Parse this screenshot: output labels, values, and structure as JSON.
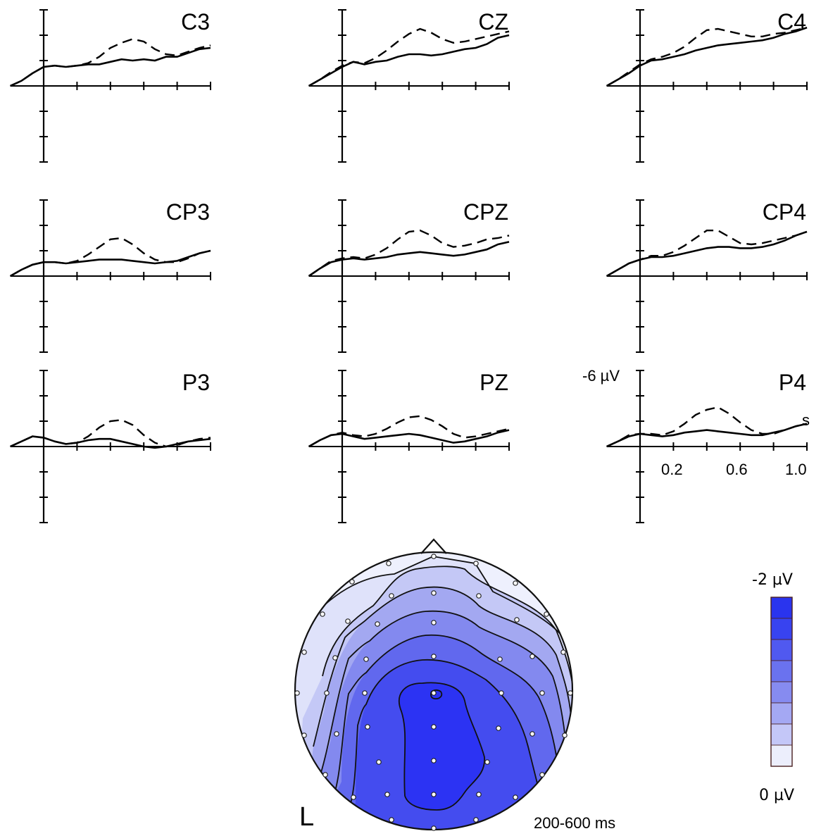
{
  "chart_data": [
    {
      "type": "line",
      "panels": [
        {
          "channel": "C3",
          "solid": [
            0,
            0.4,
            1.0,
            1.5,
            1.6,
            1.5,
            1.6,
            1.7,
            1.7,
            1.9,
            2.1,
            2.0,
            2.1,
            2.0,
            2.3,
            2.3,
            2.6,
            2.9,
            3.0
          ],
          "dashed": [
            0,
            0.4,
            1.0,
            1.5,
            1.6,
            1.5,
            1.6,
            1.8,
            2.3,
            3.0,
            3.4,
            3.7,
            3.5,
            2.9,
            2.5,
            2.4,
            2.7,
            3.0,
            3.2
          ]
        },
        {
          "channel": "CZ",
          "solid": [
            0,
            0.5,
            1.0,
            1.5,
            1.9,
            1.7,
            1.9,
            2.0,
            2.3,
            2.5,
            2.5,
            2.4,
            2.5,
            2.7,
            2.9,
            3.0,
            3.3,
            3.8,
            4.0
          ],
          "dashed": [
            0,
            0.5,
            1.1,
            1.6,
            1.9,
            1.8,
            2.2,
            2.8,
            3.5,
            4.1,
            4.5,
            4.2,
            3.7,
            3.4,
            3.5,
            3.7,
            3.9,
            4.1,
            4.3
          ]
        },
        {
          "channel": "C4",
          "solid": [
            0,
            0.5,
            1.0,
            1.6,
            2.0,
            2.1,
            2.3,
            2.5,
            2.8,
            3.0,
            3.2,
            3.3,
            3.4,
            3.5,
            3.6,
            3.8,
            4.1,
            4.3,
            4.6
          ],
          "dashed": [
            0,
            0.5,
            1.1,
            1.7,
            2.1,
            2.3,
            2.6,
            3.1,
            3.8,
            4.4,
            4.5,
            4.3,
            4.1,
            3.9,
            3.9,
            4.1,
            4.2,
            4.4,
            4.6
          ]
        },
        {
          "channel": "CP3",
          "solid": [
            0,
            0.5,
            0.9,
            1.1,
            1.1,
            1.0,
            1.1,
            1.2,
            1.3,
            1.3,
            1.3,
            1.2,
            1.1,
            1.0,
            1.1,
            1.2,
            1.5,
            1.8,
            2.0
          ],
          "dashed": [
            0,
            0.5,
            0.9,
            1.1,
            1.1,
            1.0,
            1.2,
            1.7,
            2.3,
            2.9,
            3.0,
            2.5,
            1.8,
            1.3,
            1.1,
            1.1,
            1.4,
            1.8,
            2.0
          ]
        },
        {
          "channel": "CPZ",
          "solid": [
            0,
            0.6,
            1.1,
            1.3,
            1.4,
            1.3,
            1.4,
            1.5,
            1.7,
            1.8,
            1.9,
            1.8,
            1.7,
            1.6,
            1.7,
            1.9,
            2.1,
            2.5,
            2.7
          ],
          "dashed": [
            0,
            0.6,
            1.2,
            1.4,
            1.5,
            1.4,
            1.7,
            2.2,
            2.9,
            3.5,
            3.6,
            3.2,
            2.6,
            2.3,
            2.4,
            2.6,
            2.9,
            3.0,
            3.2
          ]
        },
        {
          "channel": "CP4",
          "solid": [
            0,
            0.5,
            1.0,
            1.3,
            1.5,
            1.5,
            1.6,
            1.8,
            2.0,
            2.2,
            2.3,
            2.3,
            2.2,
            2.2,
            2.3,
            2.5,
            2.8,
            3.2,
            3.5
          ],
          "dashed": [
            0,
            0.5,
            1.0,
            1.3,
            1.6,
            1.6,
            1.9,
            2.4,
            3.0,
            3.6,
            3.6,
            3.1,
            2.6,
            2.5,
            2.6,
            2.8,
            3.0,
            3.2,
            3.5
          ]
        },
        {
          "channel": "P3",
          "solid": [
            0,
            0.4,
            0.8,
            0.7,
            0.4,
            0.2,
            0.3,
            0.5,
            0.6,
            0.6,
            0.4,
            0.2,
            0.0,
            -0.1,
            0.0,
            0.2,
            0.4,
            0.5,
            0.6
          ],
          "dashed": [
            0,
            0.4,
            0.8,
            0.7,
            0.4,
            0.2,
            0.3,
            0.8,
            1.5,
            2.0,
            2.1,
            1.7,
            0.9,
            0.3,
            0.0,
            0.1,
            0.4,
            0.6,
            0.7
          ]
        },
        {
          "channel": "PZ",
          "solid": [
            0,
            0.5,
            0.9,
            1.0,
            0.8,
            0.6,
            0.7,
            0.8,
            0.9,
            1.0,
            0.9,
            0.7,
            0.5,
            0.3,
            0.4,
            0.6,
            0.8,
            1.1,
            1.3
          ],
          "dashed": [
            0,
            0.5,
            0.9,
            1.1,
            0.9,
            0.8,
            1.0,
            1.4,
            1.9,
            2.3,
            2.4,
            2.1,
            1.6,
            1.0,
            0.7,
            0.8,
            1.0,
            1.2,
            1.4
          ]
        },
        {
          "channel": "P4",
          "solid": [
            0,
            0.4,
            0.8,
            1.0,
            0.9,
            0.8,
            0.9,
            1.1,
            1.2,
            1.3,
            1.2,
            1.1,
            1.0,
            0.9,
            0.9,
            1.1,
            1.3,
            1.6,
            1.8
          ],
          "dashed": [
            0,
            0.4,
            0.9,
            1.0,
            1.0,
            0.9,
            1.2,
            1.8,
            2.5,
            2.9,
            3.1,
            2.6,
            1.9,
            1.3,
            1.0,
            1.0,
            1.3,
            1.6,
            1.8
          ]
        }
      ],
      "x_range": [
        -0.2,
        1.0
      ],
      "y_range": [
        -6,
        6
      ],
      "y_inverted": true,
      "y_axis_label": "-6 µV",
      "x_unit_label": "s",
      "x_tick_labels": [
        "0.2",
        "0.6",
        "1.0"
      ],
      "x_tick_values": [
        0.2,
        0.6,
        1.0
      ]
    },
    {
      "type": "heatmap",
      "kind": "scalp-topography",
      "side_label": "L",
      "time_window_label": "200-600 ms",
      "colorbar": {
        "max_label": "-2 µV",
        "min_label": "0 µV",
        "colors": [
          "#2a34ee",
          "#3843f0",
          "#5059f0",
          "#6a72ef",
          "#868bf0",
          "#a4a8f3",
          "#c4c7f8",
          "#eceefc"
        ]
      },
      "contour_colors": [
        "#dfe2fa",
        "#c4c8f6",
        "#a3a8f1",
        "#8389ef",
        "#6168ee",
        "#444cef",
        "#2c33f3"
      ]
    }
  ]
}
